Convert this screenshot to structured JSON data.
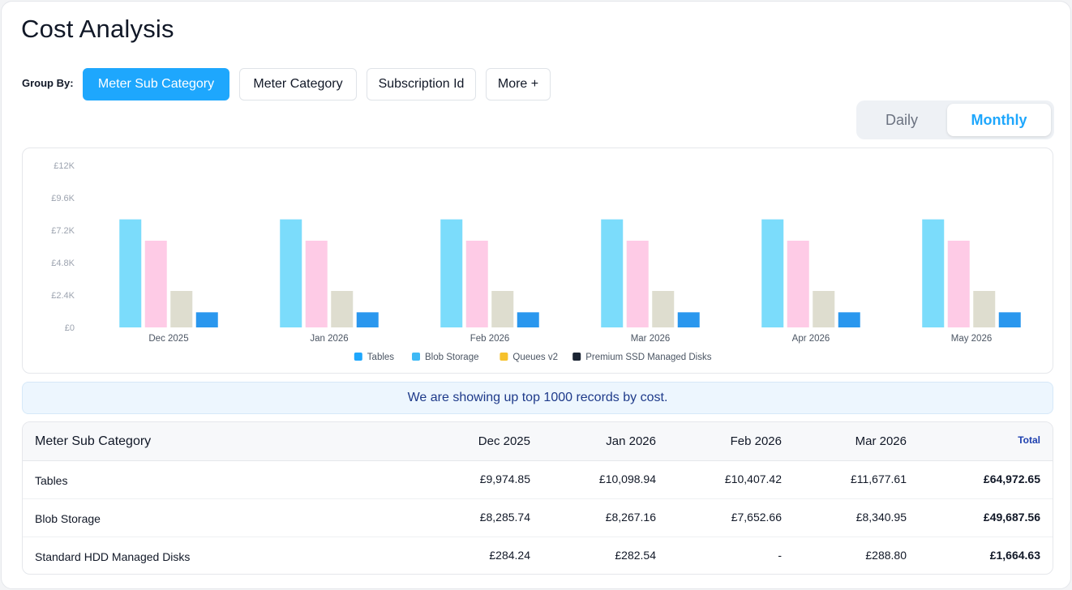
{
  "page": {
    "title": "Cost Analysis"
  },
  "group_by": {
    "label": "Group By:",
    "buttons": [
      {
        "label": "Meter Sub Category",
        "active": true
      },
      {
        "label": "Meter Category",
        "active": false
      },
      {
        "label": "Subscription Id",
        "active": false
      },
      {
        "label": "More +",
        "active": false
      }
    ]
  },
  "period_toggle": {
    "options": [
      "Daily",
      "Monthly"
    ],
    "selected": "Monthly"
  },
  "chart_data": {
    "type": "bar",
    "categories": [
      "Dec 2025",
      "Jan 2026",
      "Feb 2026",
      "Mar 2026",
      "Apr 2026",
      "May 2026"
    ],
    "y_tick_labels": [
      "£0",
      "£2.4K",
      "£4.8K",
      "£7.2K",
      "£9.6K",
      "£12K"
    ],
    "ylim": [
      0,
      12000
    ],
    "series": [
      {
        "name": "Tables",
        "color": "#7bdcfb",
        "legend_color": "#1ea7fd",
        "values": [
          8000,
          8000,
          8000,
          8000,
          8000,
          8000
        ]
      },
      {
        "name": "Blob Storage",
        "color": "#fecbe6",
        "legend_color": "#3fb9f5",
        "values": [
          6420,
          6420,
          6420,
          6420,
          6420,
          6420
        ]
      },
      {
        "name": "Queues v2",
        "color": "#deddcf",
        "legend_color": "#f6c12c",
        "values": [
          2700,
          2700,
          2700,
          2700,
          2700,
          2700
        ]
      },
      {
        "name": "Premium SSD Managed Disks",
        "color": "#2a97ee",
        "legend_color": "#1b2433",
        "values": [
          1120,
          1120,
          1120,
          1120,
          1120,
          1120
        ]
      }
    ],
    "legend_position": "bottom",
    "grid": false
  },
  "notice": {
    "text": "We are showing up top 1000 records by cost."
  },
  "table": {
    "headers": [
      "Meter Sub Category",
      "Dec 2025",
      "Jan 2026",
      "Feb 2026",
      "Mar 2026",
      "Total"
    ],
    "rows": [
      {
        "name": "Tables",
        "values": [
          "£9,974.85",
          "£10,098.94",
          "£10,407.42",
          "£11,677.61"
        ],
        "total": "£64,972.65"
      },
      {
        "name": "Blob Storage",
        "values": [
          "£8,285.74",
          "£8,267.16",
          "£7,652.66",
          "£8,340.95"
        ],
        "total": "£49,687.56"
      },
      {
        "name": "Standard HDD Managed Disks",
        "values": [
          "£284.24",
          "£282.54",
          "-",
          "£288.80"
        ],
        "total": "£1,664.63"
      }
    ]
  }
}
